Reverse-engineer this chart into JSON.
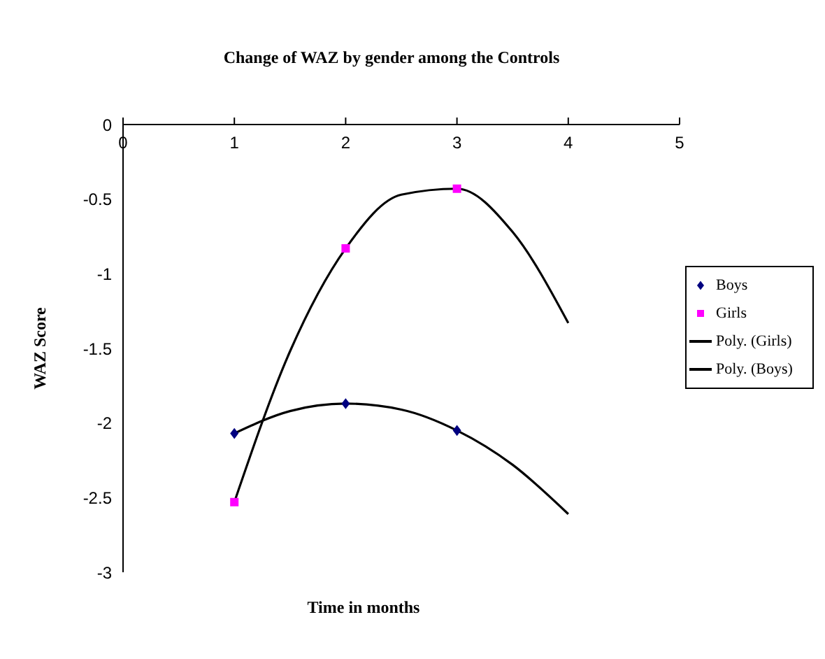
{
  "chart_data": {
    "type": "scatter",
    "title": "Change of WAZ  by gender among the Controls",
    "xlabel": "Time  in months",
    "ylabel": "WAZ Score",
    "xlim": [
      0,
      5
    ],
    "xticks": [
      0,
      1,
      2,
      3,
      4,
      5
    ],
    "ylim": [
      -3,
      0
    ],
    "yticks": [
      0,
      -0.5,
      -1,
      -1.5,
      -2,
      -2.5,
      -3
    ],
    "grid": false,
    "legend": "right",
    "series": [
      {
        "name": "Boys",
        "marker": "diamond",
        "color": "#000080",
        "x": [
          1,
          2,
          3
        ],
        "values": [
          -2.07,
          -1.87,
          -2.05
        ]
      },
      {
        "name": "Girls",
        "marker": "square",
        "color": "#ff00ff",
        "x": [
          1,
          2,
          3
        ],
        "values": [
          -2.53,
          -0.83,
          -0.43
        ]
      },
      {
        "name": "Poly. (Girls)",
        "type": "line",
        "marker": "none",
        "color": "#000000",
        "x": [
          1,
          1.5,
          2,
          2.5,
          3,
          3.5,
          4
        ],
        "values": [
          -2.53,
          -1.52,
          -0.83,
          -0.47,
          -0.43,
          -0.72,
          -1.33
        ]
      },
      {
        "name": "Poly. (Boys)",
        "type": "line",
        "marker": "none",
        "color": "#000000",
        "x": [
          1,
          1.5,
          2,
          2.5,
          3,
          3.5,
          4
        ],
        "values": [
          -2.07,
          -1.92,
          -1.87,
          -1.91,
          -2.05,
          -2.28,
          -2.61
        ]
      }
    ]
  }
}
